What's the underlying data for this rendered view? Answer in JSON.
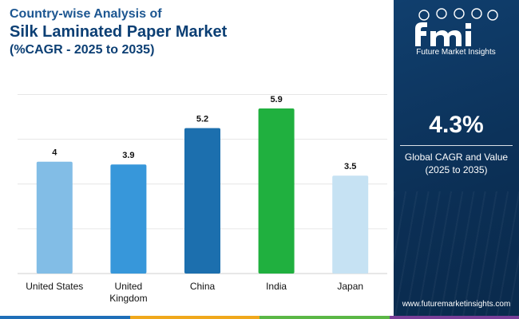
{
  "title": {
    "line1": "Country-wise Analysis of",
    "line2": "Silk Laminated Paper Market",
    "line3": "(%CAGR - 2025 to 2035)"
  },
  "brand": {
    "name": "Future Market Insights",
    "website": "www.futuremarketinsights.com",
    "logo_letters": "fmi"
  },
  "summary": {
    "value": "4.3%",
    "label_line1": "Global CAGR and Value",
    "label_line2": "(2025 to 2035)"
  },
  "colors": {
    "panel": "#0b2f55",
    "title_dark": "#0c3f74",
    "gridline": "#e6e6e6",
    "strip": [
      "#1f6fb8",
      "#f0a81c",
      "#5bb746",
      "#7a3e98"
    ]
  },
  "chart_data": {
    "type": "bar",
    "categories": [
      "United States",
      "United Kingdom",
      "China",
      "India",
      "Japan"
    ],
    "category_lines": [
      [
        "United States"
      ],
      [
        "United",
        "Kingdom"
      ],
      [
        "China"
      ],
      [
        "India"
      ],
      [
        "Japan"
      ]
    ],
    "values": [
      4,
      3.9,
      5.2,
      5.9,
      3.5
    ],
    "value_labels": [
      "4",
      "3.9",
      "5.2",
      "5.9",
      "3.5"
    ],
    "bar_colors": [
      "#82bde6",
      "#3797da",
      "#1c6fae",
      "#20b03f",
      "#c6e2f3"
    ],
    "ylim": [
      0,
      6.5
    ],
    "grid": true,
    "gridline_values": [
      0,
      1.6,
      3.2,
      4.8,
      6.4
    ],
    "xlabel": "",
    "ylabel": ""
  }
}
